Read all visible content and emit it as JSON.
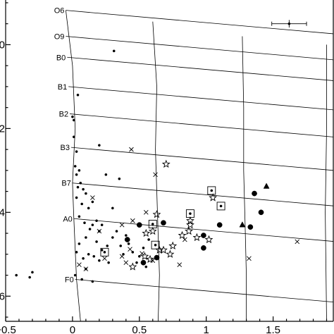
{
  "chart_data": {
    "type": "scatter",
    "title": "",
    "xlabel": "",
    "ylabel": "",
    "xlim": [
      -0.5,
      1.95
    ],
    "ylim": [
      6.6,
      -1.1
    ],
    "y_inverted": true,
    "x_ticks": [
      {
        "value": -0.5,
        "label": "−0.5"
      },
      {
        "value": 0,
        "label": "0"
      },
      {
        "value": 0.5,
        "label": "0.5"
      },
      {
        "value": 1,
        "label": "1"
      },
      {
        "value": 1.5,
        "label": "1.5"
      }
    ],
    "y_ticks": [
      {
        "value": 0,
        "label": "0"
      },
      {
        "value": 2,
        "label": "2"
      },
      {
        "value": 4,
        "label": "4"
      },
      {
        "value": 6,
        "label": "6"
      }
    ],
    "reddening_grid": {
      "spectral_types": [
        {
          "label": "O6",
          "x": -0.05,
          "y": -0.82
        },
        {
          "label": "O9",
          "x": -0.05,
          "y": -0.2
        },
        {
          "label": "B0",
          "x": -0.04,
          "y": 0.3
        },
        {
          "label": "B1",
          "x": -0.03,
          "y": 1.0
        },
        {
          "label": "B2",
          "x": -0.02,
          "y": 1.65
        },
        {
          "label": "B3",
          "x": -0.01,
          "y": 2.45
        },
        {
          "label": "B7",
          "x": 0.0,
          "y": 3.3
        },
        {
          "label": "A0",
          "x": 0.01,
          "y": 4.15
        },
        {
          "label": "F0",
          "x": 0.02,
          "y": 5.6
        }
      ],
      "reddening_slope": 0.28,
      "reddening_x_end": 1.95,
      "av_curves": [
        [
          [
            -0.05,
            -0.82
          ],
          [
            0.0,
            0.5
          ],
          [
            0.02,
            2.0
          ],
          [
            0.0,
            3.3
          ],
          [
            0.01,
            4.15
          ],
          [
            0.03,
            5.6
          ],
          [
            0.06,
            6.6
          ]
        ],
        [
          [
            0.6,
            -0.55
          ],
          [
            0.63,
            1.0
          ],
          [
            0.62,
            2.5
          ],
          [
            0.63,
            3.5
          ],
          [
            0.64,
            4.5
          ],
          [
            0.65,
            5.5
          ],
          [
            0.64,
            6.6
          ]
        ],
        [
          [
            1.27,
            -0.2
          ],
          [
            1.28,
            1.5
          ],
          [
            1.28,
            3.0
          ],
          [
            1.29,
            4.2
          ],
          [
            1.3,
            5.5
          ],
          [
            1.3,
            6.6
          ]
        ],
        [
          [
            1.9,
            0.0
          ],
          [
            1.9,
            2.0
          ],
          [
            1.89,
            4.0
          ],
          [
            1.9,
            6.6
          ]
        ]
      ]
    },
    "error_bar": {
      "x": 1.62,
      "y": -0.5,
      "xerr": 0.13,
      "yerr": 0.09
    },
    "series": [
      {
        "marker": "dot",
        "points": [
          [
            -0.42,
            5.5
          ],
          [
            -0.32,
            5.55
          ],
          [
            -0.3,
            5.43
          ],
          [
            0.0,
            1.72
          ],
          [
            0.01,
            1.8
          ],
          [
            0.04,
            1.2
          ],
          [
            0.01,
            2.2
          ],
          [
            0.03,
            2.55
          ],
          [
            0.02,
            2.9
          ],
          [
            0.05,
            3.0
          ],
          [
            0.03,
            3.1
          ],
          [
            0.06,
            3.3
          ],
          [
            0.04,
            3.4
          ],
          [
            0.08,
            3.45
          ],
          [
            0.1,
            3.55
          ],
          [
            0.03,
            3.65
          ],
          [
            0.07,
            3.8
          ],
          [
            0.12,
            3.9
          ],
          [
            0.05,
            4.1
          ],
          [
            0.09,
            4.25
          ],
          [
            0.15,
            4.3
          ],
          [
            0.2,
            4.45
          ],
          [
            0.18,
            4.7
          ],
          [
            0.1,
            4.6
          ],
          [
            0.05,
            4.75
          ],
          [
            0.03,
            4.95
          ],
          [
            0.08,
            5.1
          ],
          [
            0.12,
            5.0
          ],
          [
            0.16,
            5.05
          ],
          [
            0.2,
            5.15
          ],
          [
            0.22,
            4.9
          ],
          [
            0.26,
            4.8
          ],
          [
            0.3,
            4.6
          ],
          [
            0.33,
            4.45
          ],
          [
            0.36,
            4.8
          ],
          [
            0.4,
            4.55
          ],
          [
            0.42,
            4.75
          ],
          [
            0.45,
            4.95
          ],
          [
            0.48,
            5.2
          ],
          [
            0.5,
            5.05
          ],
          [
            0.53,
            4.85
          ],
          [
            0.55,
            5.3
          ],
          [
            0.57,
            4.65
          ],
          [
            0.31,
            0.15
          ],
          [
            0.2,
            2.4
          ],
          [
            0.25,
            3.1
          ],
          [
            0.35,
            3.2
          ],
          [
            0.15,
            3.75
          ],
          [
            0.3,
            3.9
          ],
          [
            0.1,
            5.35
          ],
          [
            0.02,
            5.5
          ],
          [
            0.07,
            5.6
          ],
          [
            0.15,
            5.65
          ],
          [
            0.18,
            4.2
          ],
          [
            0.22,
            4.3
          ],
          [
            0.27,
            5.2
          ],
          [
            0.38,
            5.0
          ],
          [
            0.13,
            4.4
          ]
        ]
      },
      {
        "marker": "cross",
        "points": [
          [
            0.44,
            2.5
          ],
          [
            0.62,
            3.1
          ],
          [
            0.15,
            3.65
          ],
          [
            0.2,
            4.45
          ],
          [
            0.37,
            4.3
          ],
          [
            0.45,
            4.2
          ],
          [
            0.55,
            4.0
          ],
          [
            0.43,
            4.88
          ],
          [
            0.37,
            5.05
          ],
          [
            0.4,
            5.2
          ],
          [
            0.52,
            4.98
          ],
          [
            0.6,
            5.15
          ],
          [
            0.8,
            5.25
          ],
          [
            0.84,
            4.65
          ],
          [
            1.32,
            5.1
          ],
          [
            1.68,
            4.7
          ],
          [
            0.24,
            5.1
          ],
          [
            0.05,
            5.25
          ],
          [
            0.1,
            5.35
          ]
        ]
      },
      {
        "marker": "star",
        "points": [
          [
            0.7,
            2.85
          ],
          [
            0.88,
            4.2
          ],
          [
            0.87,
            4.45
          ],
          [
            0.82,
            4.55
          ],
          [
            0.93,
            4.6
          ],
          [
            0.75,
            4.8
          ],
          [
            0.73,
            5.0
          ],
          [
            0.58,
            5.12
          ],
          [
            0.6,
            4.45
          ],
          [
            1.05,
            3.65
          ],
          [
            0.63,
            4.05
          ],
          [
            1.02,
            4.65
          ],
          [
            0.88,
            4.3
          ],
          [
            0.68,
            4.9
          ],
          [
            0.54,
            5.05
          ],
          [
            0.45,
            5.3
          ],
          [
            0.55,
            4.5
          ],
          [
            0.65,
            4.9
          ]
        ]
      },
      {
        "marker": "circle",
        "points": [
          [
            0.5,
            4.3
          ],
          [
            0.68,
            4.25
          ],
          [
            0.41,
            4.65
          ],
          [
            0.53,
            5.2
          ],
          [
            0.63,
            5.08
          ],
          [
            0.98,
            4.55
          ],
          [
            0.98,
            4.85
          ],
          [
            1.1,
            4.3
          ],
          [
            1.33,
            4.35
          ],
          [
            1.36,
            3.55
          ],
          [
            1.41,
            4.0
          ]
        ]
      },
      {
        "marker": "square-dot",
        "points": [
          [
            0.24,
            4.95
          ],
          [
            0.6,
            4.28
          ],
          [
            0.62,
            4.78
          ],
          [
            0.88,
            4.03
          ],
          [
            1.04,
            3.48
          ],
          [
            1.11,
            3.85
          ]
        ]
      },
      {
        "marker": "triangle",
        "points": [
          [
            1.45,
            3.38
          ],
          [
            1.27,
            4.3
          ]
        ]
      }
    ]
  }
}
